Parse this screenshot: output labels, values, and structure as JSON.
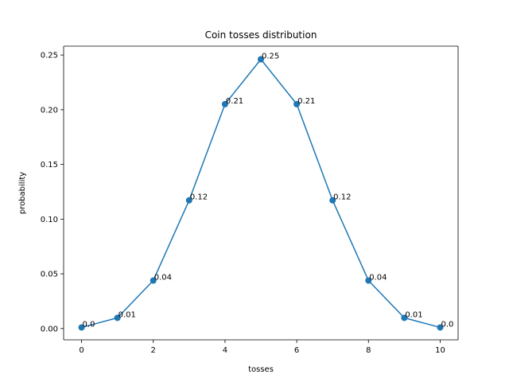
{
  "chart_data": {
    "type": "line",
    "title": "Coin tosses distribution",
    "xlabel": "tosses",
    "ylabel": "probability",
    "xlim": [
      -0.5,
      10.5
    ],
    "ylim": [
      -0.0103,
      0.2581
    ],
    "xticks": [
      0,
      2,
      4,
      6,
      8,
      10
    ],
    "xtick_labels": [
      "0",
      "2",
      "4",
      "6",
      "8",
      "10"
    ],
    "yticks": [
      0.0,
      0.05,
      0.1,
      0.15,
      0.2,
      0.25
    ],
    "ytick_labels": [
      "0.00",
      "0.05",
      "0.10",
      "0.15",
      "0.20",
      "0.25"
    ],
    "grid": false,
    "color": "#1f77b4",
    "series": [
      {
        "x": [
          0,
          1,
          2,
          3,
          4,
          5,
          6,
          7,
          8,
          9,
          10
        ],
        "y": [
          0.001,
          0.0098,
          0.0439,
          0.1172,
          0.2051,
          0.2461,
          0.2051,
          0.1172,
          0.0439,
          0.0098,
          0.001
        ],
        "labels": [
          "0.0",
          "0.01",
          "0.04",
          "0.12",
          "0.21",
          "0.25",
          "0.21",
          "0.12",
          "0.04",
          "0.01",
          "0.0"
        ]
      }
    ]
  }
}
